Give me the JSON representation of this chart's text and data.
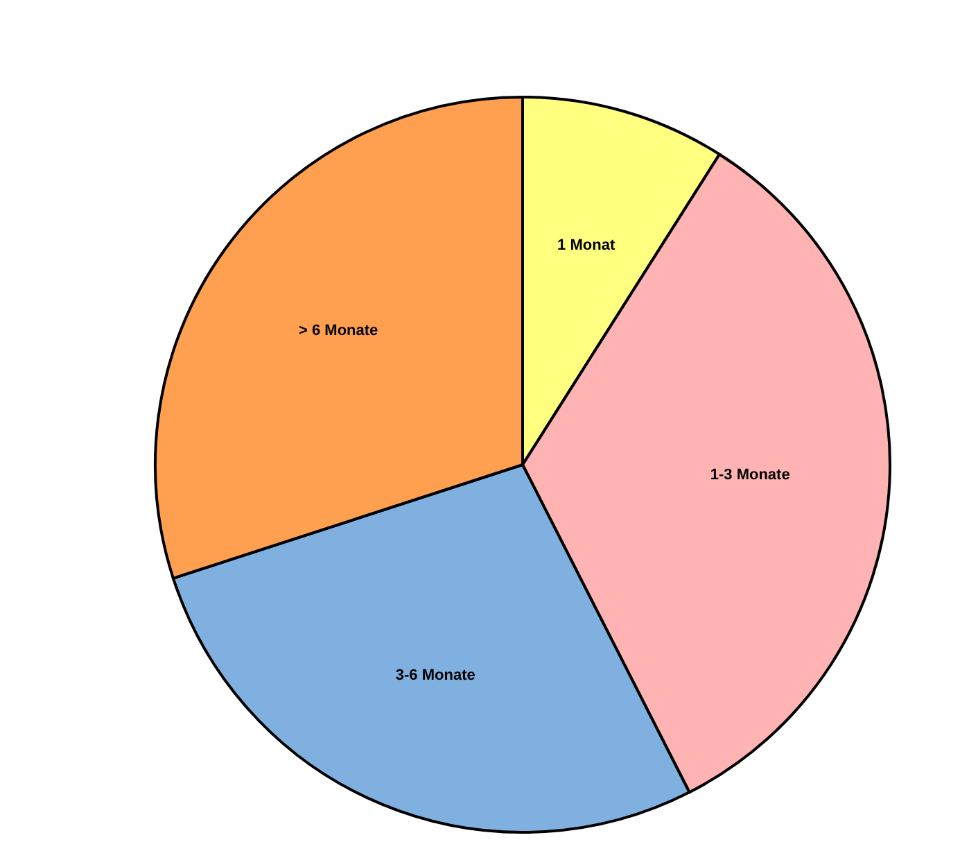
{
  "chart_data": {
    "type": "pie",
    "categories": [
      "1 Monat",
      "1-3 Monate",
      "3-6 Monate",
      "> 6 Monate"
    ],
    "values": [
      9,
      33.5,
      27.5,
      30
    ],
    "colors": [
      "#ffff80",
      "#ffb3b3",
      "#80b0e0",
      "#ffa050"
    ],
    "legend": false
  }
}
